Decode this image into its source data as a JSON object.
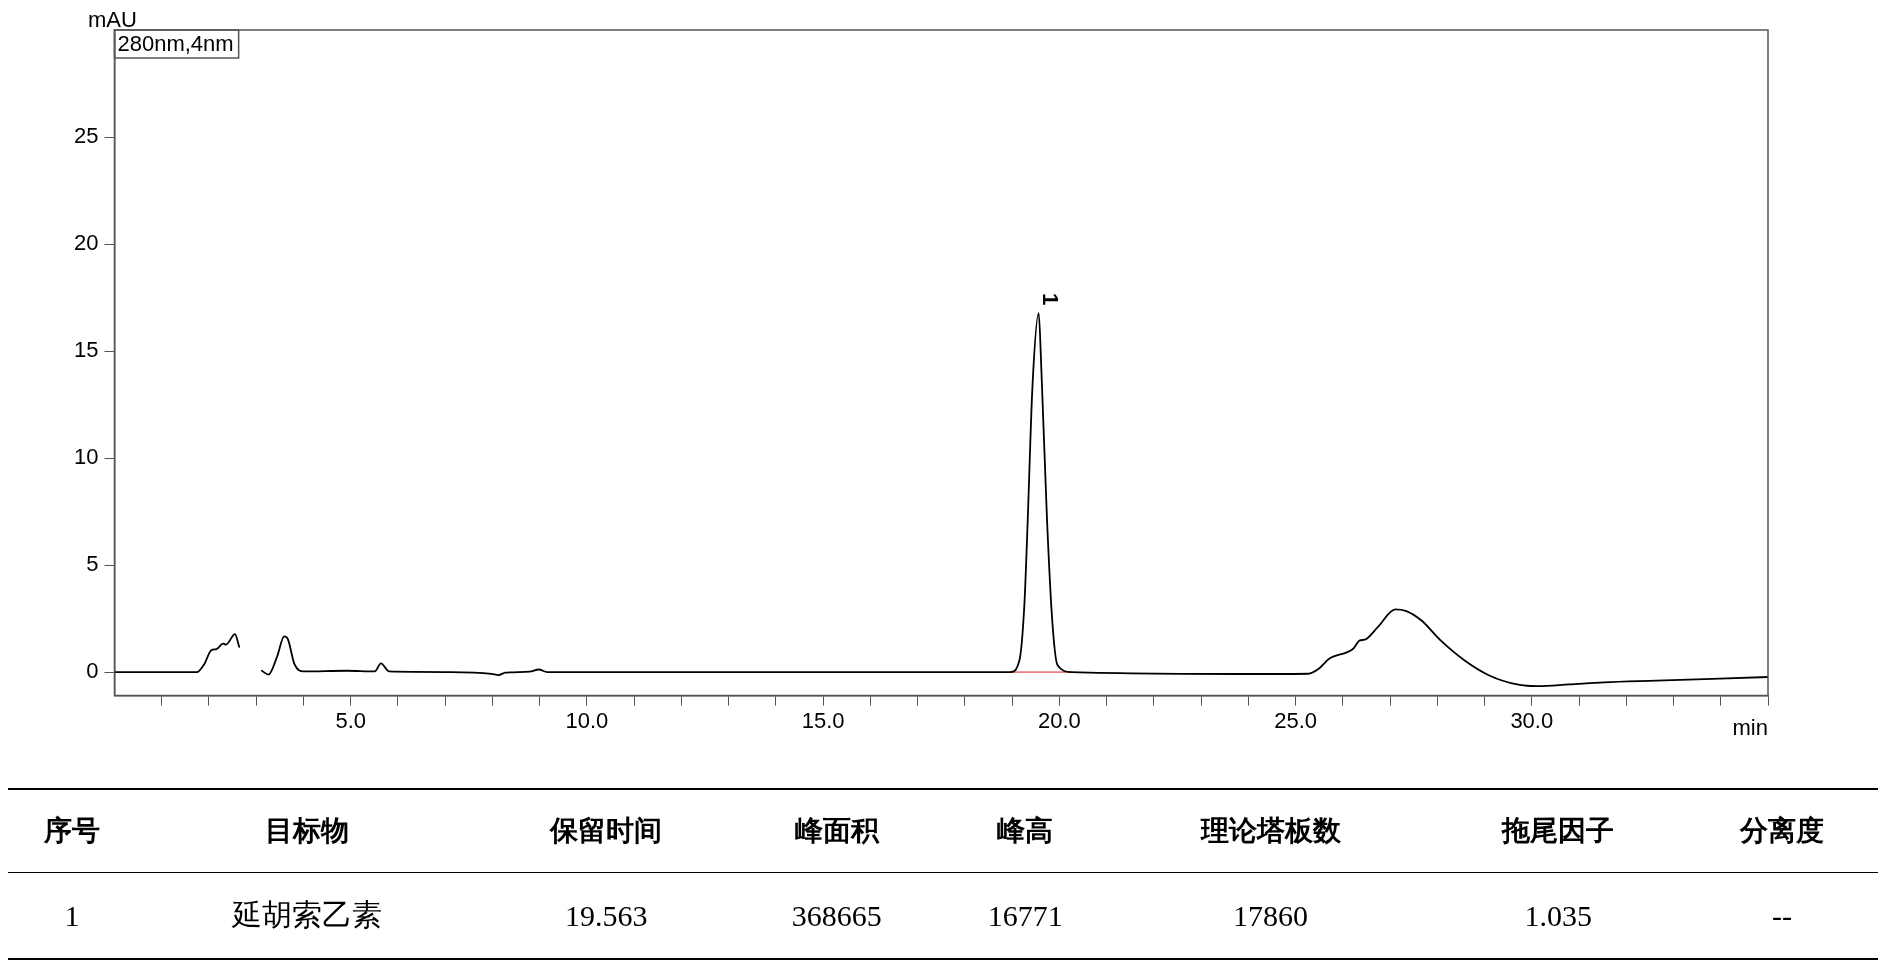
{
  "chart_data": {
    "type": "line",
    "xlabel": "min",
    "ylabel": "mAU",
    "annotations": [
      "280nm,4nm",
      {
        "text": "1",
        "x": 19.563,
        "y": 16.771
      },
      "序号",
      "目标物",
      "保留时间",
      "峰面积",
      "峰高",
      "理论塔板数",
      "拖尾因子",
      "分离度",
      "1",
      "延胡索乙素",
      "19.563",
      "368665",
      "16771",
      "17860",
      "1.035",
      "--"
    ],
    "series": [
      {
        "color": "#000000",
        "x": [
          0,
          1.75,
          1.9,
          2.05,
          2.16,
          2.3,
          2.36,
          2.55,
          2.64,
          2.75,
          2.76,
          3.0,
          3.01,
          3.12,
          3.26,
          3.45,
          3.59,
          3.67,
          3.81,
          4.0,
          4.92,
          5.51,
          5.64,
          5.81,
          7.13,
          7.98,
          8.13,
          8.27,
          8.79,
          8.98,
          9.16,
          18.96,
          19.15,
          19.26,
          19.33,
          19.43,
          19.563,
          19.62,
          19.74,
          19.85,
          19.96,
          20.25,
          24.53,
          25.27,
          25.49,
          25.71,
          26.22,
          26.36,
          26.46,
          26.74,
          27.11,
          27.33,
          27.66,
          28.07,
          28.58,
          29.1,
          29.69,
          30.13,
          30.79,
          31.53,
          32.64,
          35
        ],
        "values": [
          0,
          0,
          0.37,
          1.02,
          1.07,
          1.33,
          1.28,
          1.77,
          1.18,
          null,
          null,
          null,
          null,
          0.06,
          -0.12,
          0.77,
          1.67,
          1.54,
          0.37,
          0.03,
          0.06,
          0.03,
          0.41,
          0.03,
          0,
          -0.08,
          -0.14,
          -0.03,
          0.02,
          0.12,
          0,
          0,
          0.5,
          3.16,
          7.07,
          13.3,
          16.77,
          14.1,
          7.07,
          2.4,
          0.33,
          0,
          -0.09,
          -0.08,
          0.15,
          0.62,
          1.09,
          1.48,
          1.51,
          2.1,
          2.93,
          2.86,
          2.42,
          1.48,
          0.54,
          -0.16,
          -0.58,
          -0.66,
          -0.58,
          -0.48,
          -0.4,
          -0.23
        ]
      },
      {
        "color": "#f08080",
        "x": [
          18.96,
          20.25
        ],
        "values": [
          0,
          0
        ]
      }
    ],
    "xlim": [
      0,
      35
    ],
    "ylim": [
      -1.1,
      30
    ],
    "xticks": [
      {
        "value": 1,
        "label": null
      },
      {
        "value": 2,
        "label": null
      },
      {
        "value": 3,
        "label": null
      },
      {
        "value": 4,
        "label": null
      },
      {
        "value": 5,
        "label": "5.0"
      },
      {
        "value": 6,
        "label": null
      },
      {
        "value": 7,
        "label": null
      },
      {
        "value": 8,
        "label": null
      },
      {
        "value": 9,
        "label": null
      },
      {
        "value": 10,
        "label": "10.0"
      },
      {
        "value": 11,
        "label": null
      },
      {
        "value": 12,
        "label": null
      },
      {
        "value": 13,
        "label": null
      },
      {
        "value": 14,
        "label": null
      },
      {
        "value": 15,
        "label": "15.0"
      },
      {
        "value": 16,
        "label": null
      },
      {
        "value": 17,
        "label": null
      },
      {
        "value": 18,
        "label": null
      },
      {
        "value": 19,
        "label": null
      },
      {
        "value": 20,
        "label": "20.0"
      },
      {
        "value": 21,
        "label": null
      },
      {
        "value": 22,
        "label": null
      },
      {
        "value": 23,
        "label": null
      },
      {
        "value": 24,
        "label": null
      },
      {
        "value": 25,
        "label": "25.0"
      },
      {
        "value": 26,
        "label": null
      },
      {
        "value": 27,
        "label": null
      },
      {
        "value": 28,
        "label": null
      },
      {
        "value": 29,
        "label": null
      },
      {
        "value": 30,
        "label": "30.0"
      },
      {
        "value": 31,
        "label": null
      },
      {
        "value": 32,
        "label": null
      },
      {
        "value": 33,
        "label": null
      },
      {
        "value": 34,
        "label": null
      },
      {
        "value": 35,
        "label": null
      }
    ],
    "yticks": [
      0,
      5,
      10,
      15,
      20,
      25
    ],
    "grid": false,
    "legend": false,
    "marker": "none",
    "line_style": "solid"
  }
}
